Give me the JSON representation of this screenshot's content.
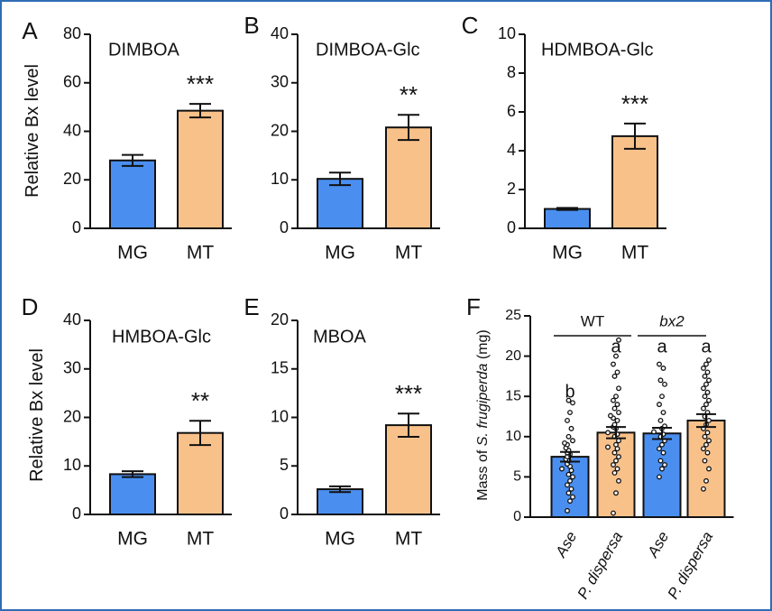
{
  "colors": {
    "mg": "#4a8ff0",
    "mt": "#f9c18a",
    "frame": "#2f6db5",
    "ink": "#111111"
  },
  "chart_data": [
    {
      "panel_label": "A",
      "type": "bar",
      "title": "DIMBOA",
      "ylabel": "Relative Bx level",
      "ylim": [
        0,
        80
      ],
      "yticks": [
        0,
        20,
        40,
        60,
        80
      ],
      "categories": [
        "MG",
        "MT"
      ],
      "values": [
        28,
        48.5
      ],
      "errors": [
        2.3,
        2.8
      ],
      "annotations": [
        {
          "category": "MT",
          "text": "***"
        }
      ]
    },
    {
      "panel_label": "B",
      "type": "bar",
      "title": "DIMBOA-Glc",
      "ylabel": "",
      "ylim": [
        0,
        40
      ],
      "yticks": [
        0,
        10,
        20,
        30,
        40
      ],
      "categories": [
        "MG",
        "MT"
      ],
      "values": [
        10.2,
        20.8
      ],
      "errors": [
        1.3,
        2.6
      ],
      "annotations": [
        {
          "category": "MT",
          "text": "**"
        }
      ]
    },
    {
      "panel_label": "C",
      "type": "bar",
      "title": "HDMBOA-Glc",
      "ylabel": "",
      "ylim": [
        0,
        10
      ],
      "yticks": [
        0,
        2,
        4,
        6,
        8,
        10
      ],
      "categories": [
        "MG",
        "MT"
      ],
      "values": [
        1.0,
        4.75
      ],
      "errors": [
        0.05,
        0.65
      ],
      "annotations": [
        {
          "category": "MT",
          "text": "***"
        }
      ]
    },
    {
      "panel_label": "D",
      "type": "bar",
      "title": "HMBOA-Glc",
      "ylabel": "Relative Bx level",
      "ylim": [
        0,
        40
      ],
      "yticks": [
        0,
        10,
        20,
        30,
        40
      ],
      "categories": [
        "MG",
        "MT"
      ],
      "values": [
        8.3,
        16.8
      ],
      "errors": [
        0.6,
        2.5
      ],
      "annotations": [
        {
          "category": "MT",
          "text": "**"
        }
      ]
    },
    {
      "panel_label": "E",
      "type": "bar",
      "title": "MBOA",
      "ylabel": "",
      "ylim": [
        0,
        20
      ],
      "yticks": [
        0,
        5,
        10,
        15,
        20
      ],
      "categories": [
        "MG",
        "MT"
      ],
      "values": [
        2.6,
        9.2
      ],
      "errors": [
        0.3,
        1.2
      ],
      "annotations": [
        {
          "category": "MT",
          "text": "***"
        }
      ]
    },
    {
      "panel_label": "F",
      "type": "bar",
      "title": "",
      "ylabel_parts": [
        "Mass of ",
        "S. frugiperda",
        " (mg)"
      ],
      "ylim": [
        0,
        25
      ],
      "yticks": [
        0,
        5,
        10,
        15,
        20,
        25
      ],
      "categories": [
        "Ase",
        "P. dispersa",
        "Ase",
        "P. dispersa"
      ],
      "category_italic": [
        true,
        true,
        true,
        true
      ],
      "values": [
        7.5,
        10.5,
        10.4,
        12.0
      ],
      "errors": [
        0.6,
        0.7,
        0.7,
        0.8
      ],
      "bar_colors": [
        "mg",
        "mt",
        "mg",
        "mt"
      ],
      "letters": [
        "b",
        "a",
        "a",
        "a"
      ],
      "groups": [
        {
          "label": "WT",
          "italic": false,
          "categories": [
            0,
            1
          ]
        },
        {
          "label": "bx2",
          "italic": true,
          "categories": [
            2,
            3
          ]
        }
      ],
      "points": [
        [
          0.8,
          2,
          2.5,
          3,
          3.5,
          4,
          4.5,
          5,
          5.3,
          5.8,
          6,
          6.3,
          6.6,
          7,
          7.2,
          7.5,
          7.8,
          8,
          8.3,
          8.6,
          9,
          9.2,
          9.5,
          10,
          11,
          12,
          13,
          14.2,
          14.5
        ],
        [
          0.5,
          3,
          4.5,
          5.5,
          6,
          6.5,
          7,
          7.5,
          8,
          8.5,
          8.7,
          9,
          9.5,
          10,
          10.3,
          10.5,
          11,
          11.2,
          11.5,
          12,
          12.3,
          12.6,
          13,
          13.5,
          14,
          14.5,
          15,
          16,
          17.5,
          18,
          19,
          20,
          22
        ],
        [
          5,
          6,
          6.5,
          7,
          8,
          8.5,
          9,
          9.5,
          10,
          10.3,
          10.6,
          11,
          11.3,
          12,
          13,
          14,
          15,
          16.5,
          17,
          18.5,
          19
        ],
        [
          3.5,
          4.5,
          6,
          7,
          8,
          8.5,
          9,
          9.5,
          10,
          10.5,
          11,
          11.5,
          12,
          12.5,
          13,
          13.5,
          14,
          14.5,
          15,
          15.5,
          16,
          16.5,
          17,
          17.5,
          18,
          18.5,
          19,
          19.5
        ]
      ]
    }
  ]
}
